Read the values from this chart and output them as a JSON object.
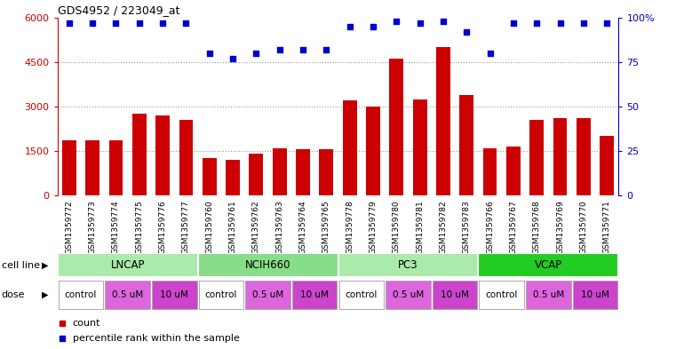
{
  "title": "GDS4952 / 223049_at",
  "samples": [
    "GSM1359772",
    "GSM1359773",
    "GSM1359774",
    "GSM1359775",
    "GSM1359776",
    "GSM1359777",
    "GSM1359760",
    "GSM1359761",
    "GSM1359762",
    "GSM1359763",
    "GSM1359764",
    "GSM1359765",
    "GSM1359778",
    "GSM1359779",
    "GSM1359780",
    "GSM1359781",
    "GSM1359782",
    "GSM1359783",
    "GSM1359766",
    "GSM1359767",
    "GSM1359768",
    "GSM1359769",
    "GSM1359770",
    "GSM1359771"
  ],
  "counts": [
    1850,
    1850,
    1850,
    2750,
    2700,
    2550,
    1250,
    1200,
    1400,
    1600,
    1550,
    1550,
    3200,
    3000,
    4600,
    3250,
    5000,
    3400,
    1600,
    1650,
    2550,
    2600,
    2600,
    2000
  ],
  "percentile_ranks": [
    97,
    97,
    97,
    97,
    97,
    97,
    80,
    77,
    80,
    82,
    82,
    82,
    95,
    95,
    98,
    97,
    98,
    92,
    80,
    97,
    97,
    97,
    97,
    97
  ],
  "cell_line_data": [
    {
      "label": "LNCAP",
      "start": 0,
      "end": 6,
      "color": "#aaeaaa"
    },
    {
      "label": "NCIH660",
      "start": 6,
      "end": 12,
      "color": "#88dd88"
    },
    {
      "label": "PC3",
      "start": 12,
      "end": 18,
      "color": "#aaeaaa"
    },
    {
      "label": "VCAP",
      "start": 18,
      "end": 24,
      "color": "#22cc22"
    }
  ],
  "dose_data": [
    {
      "label": "control",
      "start": 0,
      "end": 2,
      "color": "#ffffff"
    },
    {
      "label": "0.5 uM",
      "start": 2,
      "end": 4,
      "color": "#dd66dd"
    },
    {
      "label": "10 uM",
      "start": 4,
      "end": 6,
      "color": "#cc44cc"
    },
    {
      "label": "control",
      "start": 6,
      "end": 8,
      "color": "#ffffff"
    },
    {
      "label": "0.5 uM",
      "start": 8,
      "end": 10,
      "color": "#dd66dd"
    },
    {
      "label": "10 uM",
      "start": 10,
      "end": 12,
      "color": "#cc44cc"
    },
    {
      "label": "control",
      "start": 12,
      "end": 14,
      "color": "#ffffff"
    },
    {
      "label": "0.5 uM",
      "start": 14,
      "end": 16,
      "color": "#dd66dd"
    },
    {
      "label": "10 uM",
      "start": 16,
      "end": 18,
      "color": "#cc44cc"
    },
    {
      "label": "control",
      "start": 18,
      "end": 20,
      "color": "#ffffff"
    },
    {
      "label": "0.5 uM",
      "start": 20,
      "end": 22,
      "color": "#dd66dd"
    },
    {
      "label": "10 uM",
      "start": 22,
      "end": 24,
      "color": "#cc44cc"
    }
  ],
  "bar_color": "#cc0000",
  "dot_color": "#0000cc",
  "ylim_left": [
    0,
    6000
  ],
  "ylim_right": [
    0,
    100
  ],
  "yticks_left": [
    0,
    1500,
    3000,
    4500,
    6000
  ],
  "yticks_right": [
    0,
    25,
    50,
    75,
    100
  ],
  "bg_color": "#ffffff",
  "grid_color": "#999999",
  "xlabel_bg_color": "#cccccc"
}
